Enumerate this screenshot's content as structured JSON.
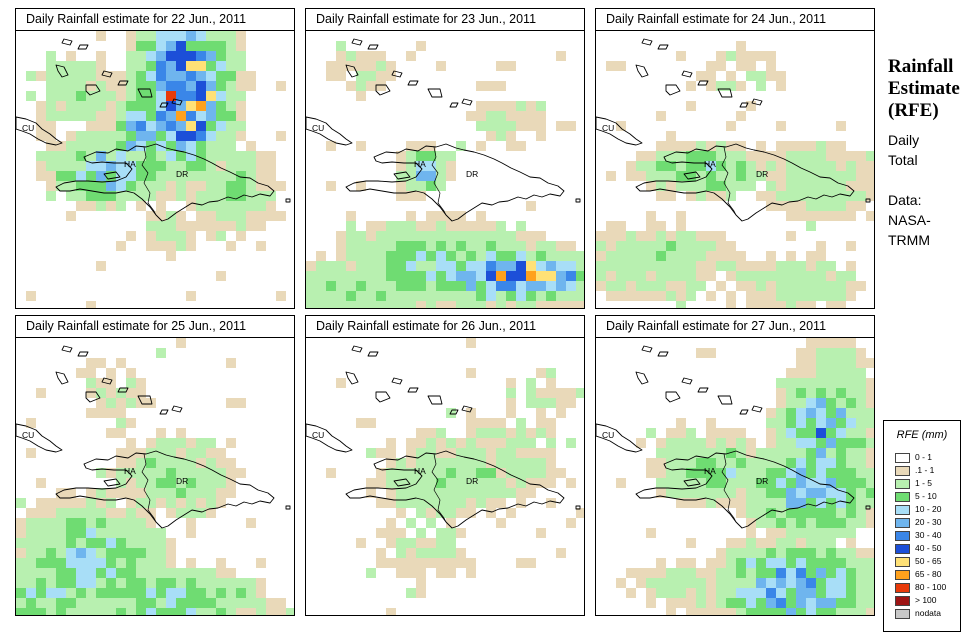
{
  "panels": [
    {
      "title": "Daily Rainfall estimate for  22 Jun., 2011"
    },
    {
      "title": "Daily Rainfall estimate for  23 Jun., 2011"
    },
    {
      "title": "Daily Rainfall estimate for  24 Jun., 2011"
    },
    {
      "title": "Daily Rainfall estimate for  25 Jun., 2011"
    },
    {
      "title": "Daily Rainfall estimate for  26 Jun., 2011"
    },
    {
      "title": "Daily Rainfall estimate for  27 Jun., 2011"
    }
  ],
  "map_labels": {
    "cuba": "CU",
    "haiti": "HA",
    "dominican_republic": "DR"
  },
  "side": {
    "title_line1": "Rainfall",
    "title_line2": "Estimate",
    "title_line3": "(RFE)",
    "line1": "Daily",
    "line2": "Total",
    "line3": "Data:",
    "line4": "NASA-",
    "line5": "TRMM"
  },
  "legend": {
    "title": "RFE (mm)",
    "items": [
      {
        "label": "0 - 1",
        "color": "#ffffff"
      },
      {
        "label": ".1 - 1",
        "color": "#e9d9b9"
      },
      {
        "label": "1 - 5",
        "color": "#b8f0b0"
      },
      {
        "label": "5 - 10",
        "color": "#6fdc72"
      },
      {
        "label": "10 - 20",
        "color": "#a8def7"
      },
      {
        "label": "20 - 30",
        "color": "#6fb5ee"
      },
      {
        "label": "30 - 40",
        "color": "#3a86e8"
      },
      {
        "label": "40 - 50",
        "color": "#1c4fd8"
      },
      {
        "label": "50 - 65",
        "color": "#ffe176"
      },
      {
        "label": "65 - 80",
        "color": "#ffa11d"
      },
      {
        "label": "80 - 100",
        "color": "#e83a0a"
      },
      {
        "label": "> 100",
        "color": "#9e1414"
      },
      {
        "label": "nodata",
        "color": "#c8c8c8"
      }
    ]
  }
}
